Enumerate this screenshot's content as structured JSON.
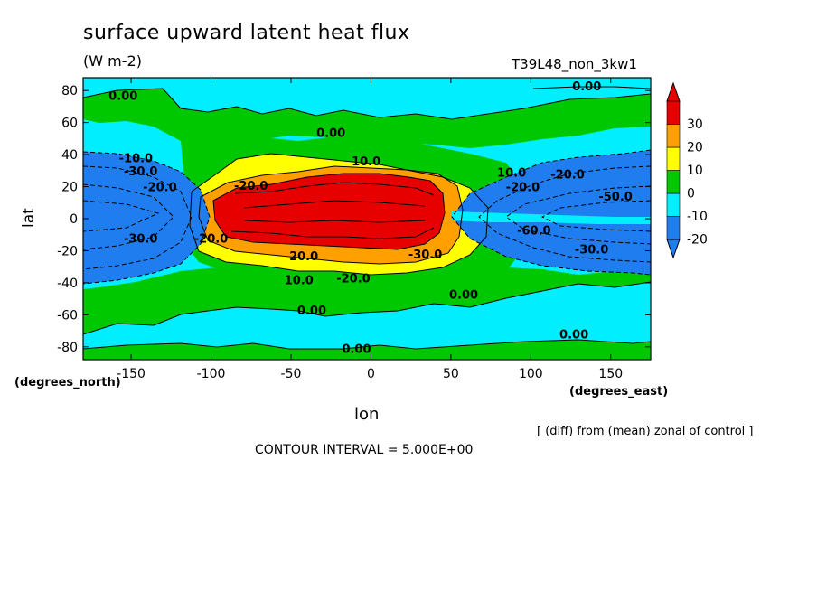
{
  "chart_data": {
    "type": "heatmap",
    "title": "surface upward latent heat flux",
    "subtitle": "(W m-2)",
    "run_label": "T39L48_non_3kw1",
    "xlabel": "lon",
    "ylabel": "lat",
    "x_unit_label": "(degrees_east)",
    "y_unit_label": "(degrees_north)",
    "x_ticks": [
      -150,
      -100,
      -50,
      0,
      50,
      100,
      150
    ],
    "x_tick_labels": [
      "-150",
      "-100",
      "-50",
      "0",
      "50",
      "100",
      "150"
    ],
    "y_ticks": [
      -80,
      -60,
      -40,
      -20,
      0,
      20,
      40,
      60,
      80
    ],
    "y_tick_labels": [
      "-80",
      "-60",
      "-40",
      "-20",
      "0",
      "20",
      "40",
      "60",
      "80"
    ],
    "xlim": [
      -180,
      175
    ],
    "ylim": [
      -88,
      88
    ],
    "legend_position": "right",
    "note": "[ (diff) from (mean) zonal of control ]",
    "contour_interval": "CONTOUR INTERVAL = 5.000E+00",
    "colorbar": {
      "levels": [
        -20,
        -10,
        0,
        10,
        20,
        30
      ],
      "level_labels": [
        "-20",
        "-10",
        "0",
        "10",
        "20",
        "30"
      ],
      "colors": [
        "#1f7df0",
        "#00eeff",
        "#00c800",
        "#ffff00",
        "#ffa000",
        "#e60000"
      ]
    },
    "contour_labels": [
      {
        "text": "0.00",
        "lon": -155,
        "lat": 77
      },
      {
        "text": "0.00",
        "lon": 135,
        "lat": 83
      },
      {
        "text": "0.00",
        "lon": -25,
        "lat": 54
      },
      {
        "text": "10.0",
        "lon": -3,
        "lat": 36
      },
      {
        "text": "-10.0",
        "lon": -147,
        "lat": 38
      },
      {
        "text": "-30.0",
        "lon": -144,
        "lat": 30
      },
      {
        "text": "-20.0",
        "lon": -132,
        "lat": 20
      },
      {
        "text": "-20.0",
        "lon": -75,
        "lat": 21
      },
      {
        "text": "-50.0",
        "lon": 153,
        "lat": 14
      },
      {
        "text": "-20.0",
        "lon": 123,
        "lat": 28
      },
      {
        "text": "10.0",
        "lon": 88,
        "lat": 29
      },
      {
        "text": "-20.0",
        "lon": 95,
        "lat": 20
      },
      {
        "text": "20.0",
        "lon": -42,
        "lat": -23
      },
      {
        "text": "-30.0",
        "lon": -144,
        "lat": -12
      },
      {
        "text": "-20.0",
        "lon": -100,
        "lat": -12
      },
      {
        "text": "-60.0",
        "lon": 102,
        "lat": -7
      },
      {
        "text": "-30.0",
        "lon": 138,
        "lat": -19
      },
      {
        "text": "-30.0",
        "lon": 34,
        "lat": -22
      },
      {
        "text": "-20.0",
        "lon": -11,
        "lat": -37
      },
      {
        "text": "10.0",
        "lon": -45,
        "lat": -38
      },
      {
        "text": "0.00",
        "lon": 58,
        "lat": -47
      },
      {
        "text": "0.00",
        "lon": -37,
        "lat": -57
      },
      {
        "text": "0.00",
        "lon": 127,
        "lat": -72
      },
      {
        "text": "0.00",
        "lon": -9,
        "lat": -81
      }
    ]
  }
}
